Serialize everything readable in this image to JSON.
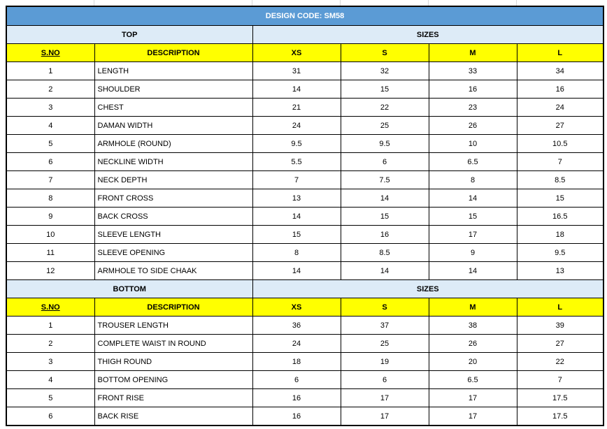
{
  "title": "DESIGN CODE: SM58",
  "top": {
    "label": "TOP",
    "sizes_label": "SIZES",
    "headers": [
      "S.NO",
      "DESCRIPTION",
      "XS",
      "S",
      "M",
      "L"
    ],
    "rows": [
      [
        1,
        "LENGTH",
        31,
        32,
        33,
        34
      ],
      [
        2,
        "SHOULDER",
        14,
        15,
        16,
        16
      ],
      [
        3,
        "CHEST",
        21,
        22,
        23,
        24
      ],
      [
        4,
        "DAMAN WIDTH",
        24,
        25,
        26,
        27
      ],
      [
        5,
        "ARMHOLE (ROUND)",
        9.5,
        9.5,
        10,
        10.5
      ],
      [
        6,
        "NECKLINE WIDTH",
        5.5,
        6,
        6.5,
        7
      ],
      [
        7,
        "NECK DEPTH",
        7,
        7.5,
        8,
        8.5
      ],
      [
        8,
        "FRONT CROSS",
        13,
        14,
        14,
        15
      ],
      [
        9,
        "BACK CROSS",
        14,
        15,
        15,
        16.5
      ],
      [
        10,
        "SLEEVE LENGTH",
        15,
        16,
        17,
        18
      ],
      [
        11,
        "SLEEVE OPENING",
        8,
        8.5,
        9,
        9.5
      ],
      [
        12,
        "ARMHOLE TO SIDE CHAAK",
        14,
        14,
        14,
        13
      ]
    ]
  },
  "bottom": {
    "label": "BOTTOM",
    "sizes_label": "SIZES",
    "headers": [
      "S.NO",
      "DESCRIPTION",
      "XS",
      "S",
      "M",
      "L"
    ],
    "rows": [
      [
        1,
        "TROUSER LENGTH",
        36,
        37,
        38,
        39
      ],
      [
        2,
        "COMPLETE WAIST IN ROUND",
        24,
        25,
        26,
        27
      ],
      [
        3,
        "THIGH ROUND",
        18,
        19,
        20,
        22
      ],
      [
        4,
        "BOTTOM OPENING",
        6,
        6,
        6.5,
        7
      ],
      [
        5,
        "FRONT RISE",
        16,
        17,
        17,
        17.5
      ],
      [
        6,
        "BACK RISE",
        16,
        17,
        17,
        17.5
      ]
    ]
  }
}
